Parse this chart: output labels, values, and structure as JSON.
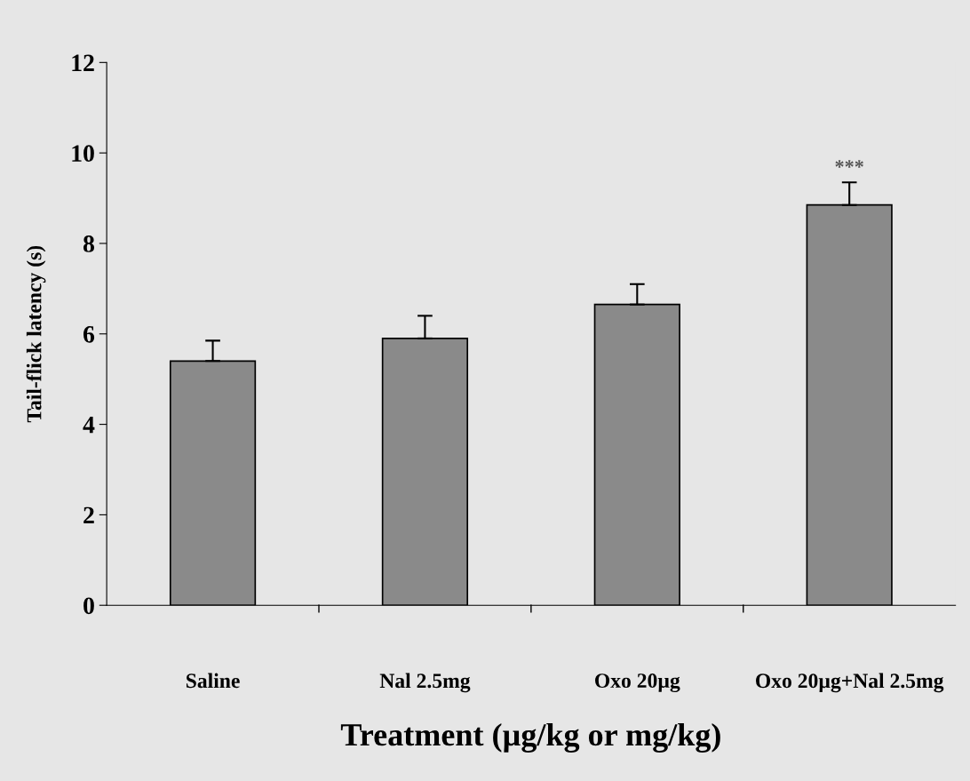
{
  "chart_data": {
    "type": "bar",
    "xlabel": "Treatment (µg/kg or mg/kg)",
    "ylabel": "Tail-flick latency (s)",
    "categories": [
      "Saline",
      "Nal 2.5mg",
      "Oxo 20µg",
      "Oxo 20µg+Nal 2.5mg"
    ],
    "values": [
      5.4,
      5.9,
      6.65,
      8.85
    ],
    "errors": [
      [
        5.4,
        5.85
      ],
      [
        5.9,
        6.4
      ],
      [
        6.65,
        7.1
      ],
      [
        8.85,
        9.35
      ]
    ],
    "color": "#8a8a8a",
    "ylim": [
      0,
      12
    ],
    "yticks": [
      0,
      2,
      4,
      6,
      8,
      10,
      12
    ],
    "grid": false,
    "legend": false,
    "annotations": [
      {
        "text": "***",
        "x": "Oxo 20µg+Nal 2.5mg",
        "y": 9.35
      }
    ]
  }
}
